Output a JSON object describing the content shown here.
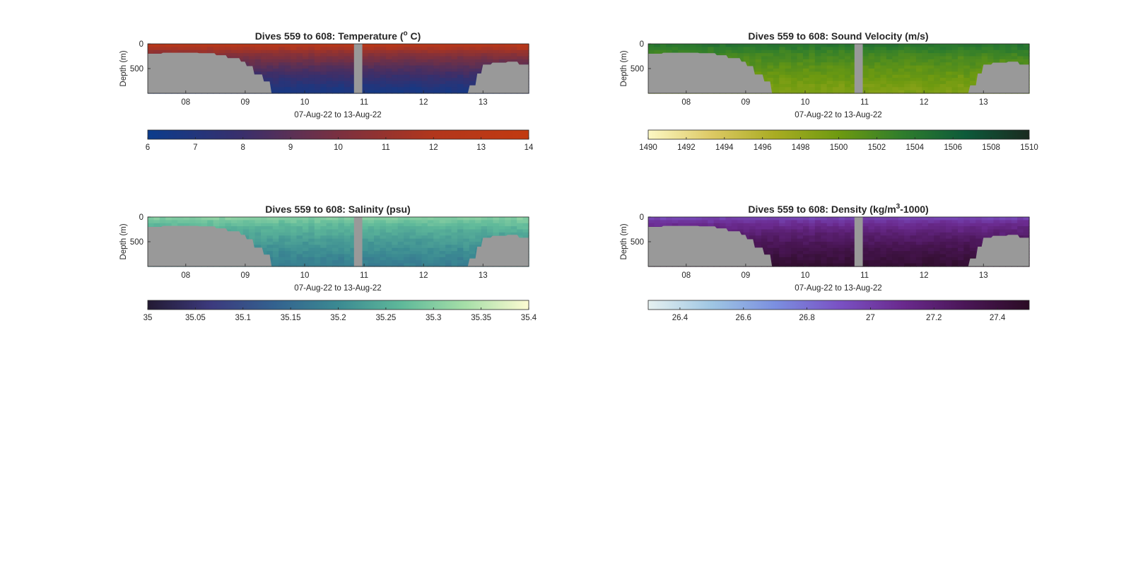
{
  "chart_data": [
    {
      "type": "heatmap",
      "title": "Dives 559 to 608: Temperature (°C)",
      "title_parts": {
        "prefix": "Dives 559 to 608: Temperature (",
        "superscript": "o",
        "suffix": " C)"
      },
      "ylabel": "Depth (m)",
      "xlabel": "07-Aug-22 to 13-Aug-22",
      "y_ticks": [
        "0",
        "500"
      ],
      "x_ticks": [
        "08",
        "09",
        "10",
        "11",
        "12",
        "13"
      ],
      "x_range_days": [
        7.36,
        13.77
      ],
      "y_range_m": [
        0,
        1000
      ],
      "y_reversed": true,
      "colorbar": {
        "min": 6,
        "max": 14,
        "ticks": [
          "6",
          "7",
          "8",
          "9",
          "10",
          "11",
          "12",
          "13",
          "14"
        ],
        "colors": [
          "#0b3c8c",
          "#3a2f6b",
          "#7a3040",
          "#b2361c",
          "#c23a10"
        ]
      },
      "surface_value": 13.5,
      "deep_value": 6.5,
      "gap_days": [
        10.83,
        10.97
      ],
      "bathymetry_color": "#999999"
    },
    {
      "type": "heatmap",
      "title": "Dives 559 to 608: Sound Velocity (m/s)",
      "title_parts": {
        "prefix": "Dives 559 to 608: Sound Velocity (m/s)",
        "superscript": "",
        "suffix": ""
      },
      "ylabel": "Depth (m)",
      "xlabel": "07-Aug-22 to 13-Aug-22",
      "y_ticks": [
        "0",
        "500"
      ],
      "x_ticks": [
        "08",
        "09",
        "10",
        "11",
        "12",
        "13"
      ],
      "x_range_days": [
        7.36,
        13.77
      ],
      "y_range_m": [
        0,
        1000
      ],
      "y_reversed": true,
      "colorbar": {
        "min": 1490,
        "max": 1510,
        "ticks": [
          "1490",
          "1492",
          "1494",
          "1496",
          "1498",
          "1500",
          "1502",
          "1504",
          "1506",
          "1508",
          "1510"
        ],
        "colors": [
          "#fdf8c4",
          "#ddc964",
          "#a9ac22",
          "#6e9a10",
          "#2f7d2c",
          "#0d5a3a",
          "#1a2a20"
        ]
      },
      "surface_value": 1505,
      "deep_value": 1499,
      "gap_days": [
        10.83,
        10.97
      ],
      "bathymetry_color": "#999999"
    },
    {
      "type": "heatmap",
      "title": "Dives 559 to 608: Salinity (psu)",
      "title_parts": {
        "prefix": "Dives 559 to 608: Salinity (psu)",
        "superscript": "",
        "suffix": ""
      },
      "ylabel": "Depth (m)",
      "xlabel": "07-Aug-22 to 13-Aug-22",
      "y_ticks": [
        "0",
        "500"
      ],
      "x_ticks": [
        "08",
        "09",
        "10",
        "11",
        "12",
        "13"
      ],
      "x_range_days": [
        7.36,
        13.77
      ],
      "y_range_m": [
        0,
        1000
      ],
      "y_reversed": true,
      "colorbar": {
        "min": 35,
        "max": 35.4,
        "ticks": [
          "35",
          "35.05",
          "35.1",
          "35.15",
          "35.2",
          "35.25",
          "35.3",
          "35.35",
          "35.4"
        ],
        "colors": [
          "#231a33",
          "#3c3a7e",
          "#33628f",
          "#3b8a92",
          "#5fb99a",
          "#a6dfa8",
          "#fdfbd2"
        ]
      },
      "surface_value": 35.32,
      "deep_value": 35.18,
      "gap_days": [
        10.83,
        10.97
      ],
      "bathymetry_color": "#999999"
    },
    {
      "type": "heatmap",
      "title": "Dives 559 to 608: Density (kg/m³-1000)",
      "title_parts": {
        "prefix": "Dives 559 to 608: Density (kg/m",
        "superscript": "3",
        "suffix": "-1000)"
      },
      "ylabel": "Depth (m)",
      "xlabel": "07-Aug-22 to 13-Aug-22",
      "y_ticks": [
        "0",
        "500"
      ],
      "x_ticks": [
        "08",
        "09",
        "10",
        "11",
        "12",
        "13"
      ],
      "x_range_days": [
        7.36,
        13.77
      ],
      "y_range_m": [
        0,
        1000
      ],
      "y_reversed": true,
      "colorbar": {
        "min": 26.3,
        "max": 27.5,
        "ticks": [
          "26.4",
          "26.6",
          "26.8",
          "27",
          "27.2",
          "27.4"
        ],
        "colors": [
          "#e6f1f1",
          "#9fc6e3",
          "#7b8fe0",
          "#7a52c4",
          "#6a2a8e",
          "#4a1656",
          "#2b0c24"
        ]
      },
      "surface_value": 26.9,
      "deep_value": 27.45,
      "gap_days": [
        10.83,
        10.97
      ],
      "bathymetry_color": "#999999"
    }
  ],
  "bathymetry": {
    "days": [
      7.36,
      7.6,
      7.9,
      8.2,
      8.5,
      8.7,
      8.9,
      9.0,
      9.15,
      9.3,
      9.42,
      12.65,
      12.75,
      12.9,
      13.0,
      13.15,
      13.4,
      13.6,
      13.77
    ],
    "depth_m": [
      200,
      180,
      180,
      190,
      230,
      290,
      360,
      450,
      620,
      760,
      1000,
      1000,
      840,
      600,
      420,
      380,
      360,
      420,
      330
    ]
  }
}
